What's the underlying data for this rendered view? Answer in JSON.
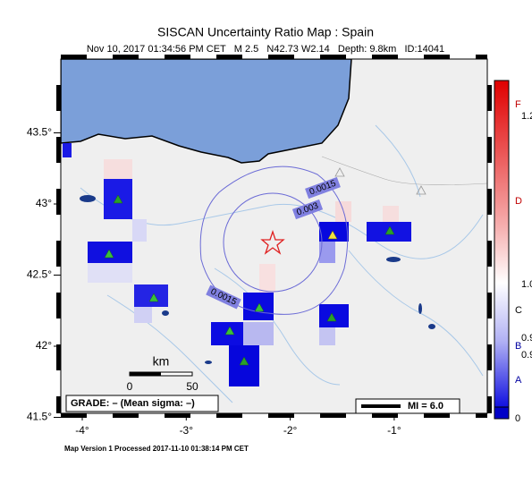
{
  "header": {
    "title": "SISCAN Uncertainty Ratio Map : Spain",
    "subtitle": "Nov 10, 2017 01:34:56 PM CET   M 2.5   N42.73 W2.14   Depth: 9.8km   ID:14041"
  },
  "map": {
    "lon_ticks": [
      {
        "value": -4,
        "label": "-4°"
      },
      {
        "value": -3,
        "label": "-3°"
      },
      {
        "value": -2,
        "label": "-2°"
      },
      {
        "value": -1,
        "label": "-1°"
      }
    ],
    "lat_ticks": [
      {
        "value": 43.5,
        "label": "43.5°"
      },
      {
        "value": 43,
        "label": "43°"
      },
      {
        "value": 42.5,
        "label": "42.5°"
      },
      {
        "value": 42,
        "label": "42°"
      },
      {
        "value": 41.5,
        "label": "41.5°"
      }
    ],
    "contour_labels": [
      "0.0015",
      "0.003",
      "0.0015"
    ],
    "scale_bar": {
      "title": "km",
      "labels": [
        "0",
        "50"
      ]
    },
    "grade": "GRADE: – (Mean sigma: –)",
    "legend": "MI = 6.0"
  },
  "colorbar": {
    "labels": [
      "F",
      "1.2",
      "D",
      "1.0",
      "C",
      "0.9",
      "B",
      "0.9",
      "A",
      "0"
    ]
  },
  "footer": "Map Version 1 Processed 2017-11-10 01:38:14 PM CET"
}
